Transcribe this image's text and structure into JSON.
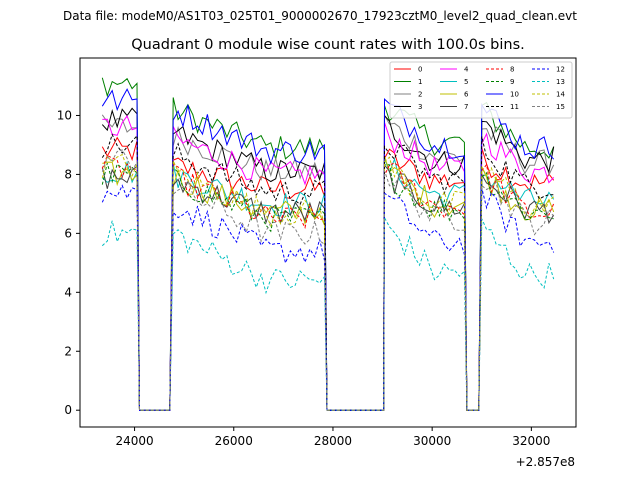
{
  "figure": {
    "suptitle": "Data file: modeM0/AS1T03_025T01_9000002670_17923cztM0_level2_quad_clean.evt"
  },
  "chart_data": {
    "type": "line",
    "title": "Quadrant 0 module wise count rates with 100.0s bins.",
    "xlabel": "",
    "ylabel": "",
    "x_offset_label": "+2.857e8",
    "xlim": [
      22900,
      32900
    ],
    "ylim": [
      -0.57,
      11.95
    ],
    "xticks": [
      24000,
      26000,
      28000,
      30000,
      32000
    ],
    "xtick_labels": [
      "24000",
      "26000",
      "28000",
      "30000",
      "32000"
    ],
    "yticks": [
      0,
      2,
      4,
      6,
      8,
      10
    ],
    "ytick_labels": [
      "0",
      "2",
      "4",
      "6",
      "8",
      "10"
    ],
    "legend_position": "top-right",
    "segments": [
      {
        "start": 23350,
        "end": 24050,
        "gap_after": [
          24050,
          24730
        ]
      },
      {
        "start": 24780,
        "end": 27830,
        "gap_after": [
          27830,
          29040
        ]
      },
      {
        "start": 29040,
        "end": 30650,
        "gap_after": [
          30650,
          30960
        ]
      },
      {
        "start": 31000,
        "end": 32450
      }
    ],
    "series": [
      {
        "name": "0",
        "color": "#ff0000",
        "dash": "solid",
        "levels": [
          8.8,
          8.3,
          8.6,
          8.5
        ],
        "trend": -0.8
      },
      {
        "name": "1",
        "color": "#008000",
        "dash": "solid",
        "levels": [
          11.1,
          10.2,
          10.4,
          10.2
        ],
        "trend": -1.3
      },
      {
        "name": "2",
        "color": "#808080",
        "dash": "solid",
        "levels": [
          9.6,
          9.3,
          9.8,
          9.6
        ],
        "trend": -1.2
      },
      {
        "name": "3",
        "color": "#000000",
        "dash": "solid",
        "levels": [
          9.8,
          9.4,
          9.7,
          9.8
        ],
        "trend": -1.3
      },
      {
        "name": "4",
        "color": "#ff00ff",
        "dash": "solid",
        "levels": [
          9.6,
          9.2,
          9.4,
          9.3
        ],
        "trend": -1.2
      },
      {
        "name": "5",
        "color": "#00bfbf",
        "dash": "solid",
        "levels": [
          8.1,
          8.0,
          8.3,
          8.1
        ],
        "trend": -1.0
      },
      {
        "name": "6",
        "color": "#bfbf00",
        "dash": "solid",
        "levels": [
          8.0,
          7.9,
          8.2,
          8.0
        ],
        "trend": -1.2
      },
      {
        "name": "7",
        "color": "#404040",
        "dash": "solid",
        "levels": [
          7.9,
          7.8,
          8.0,
          7.9
        ],
        "trend": -1.1
      },
      {
        "name": "8",
        "color": "#ff0000",
        "dash": "dashed",
        "levels": [
          8.2,
          7.9,
          8.3,
          8.1
        ],
        "trend": -1.4
      },
      {
        "name": "9",
        "color": "#008000",
        "dash": "dashed",
        "levels": [
          8.0,
          7.8,
          8.1,
          8.0
        ],
        "trend": -1.3
      },
      {
        "name": "10",
        "color": "#0000ff",
        "dash": "solid",
        "levels": [
          10.5,
          10.2,
          10.4,
          10.3
        ],
        "trend": -1.4
      },
      {
        "name": "11",
        "color": "#000000",
        "dash": "dashed",
        "levels": [
          9.0,
          8.7,
          9.1,
          8.9
        ],
        "trend": -1.3
      },
      {
        "name": "12",
        "color": "#0000ff",
        "dash": "dashed",
        "levels": [
          7.4,
          7.0,
          7.3,
          7.3
        ],
        "trend": -1.6
      },
      {
        "name": "13",
        "color": "#00bfbf",
        "dash": "dashed",
        "levels": [
          6.0,
          6.0,
          6.3,
          6.2
        ],
        "trend": -1.6
      },
      {
        "name": "14",
        "color": "#bfbf00",
        "dash": "dashed",
        "levels": [
          8.3,
          8.1,
          8.4,
          8.3
        ],
        "trend": -1.4
      },
      {
        "name": "15",
        "color": "#808080",
        "dash": "dashed",
        "levels": [
          8.5,
          7.6,
          8.1,
          8.0
        ],
        "trend": -1.6
      }
    ]
  }
}
